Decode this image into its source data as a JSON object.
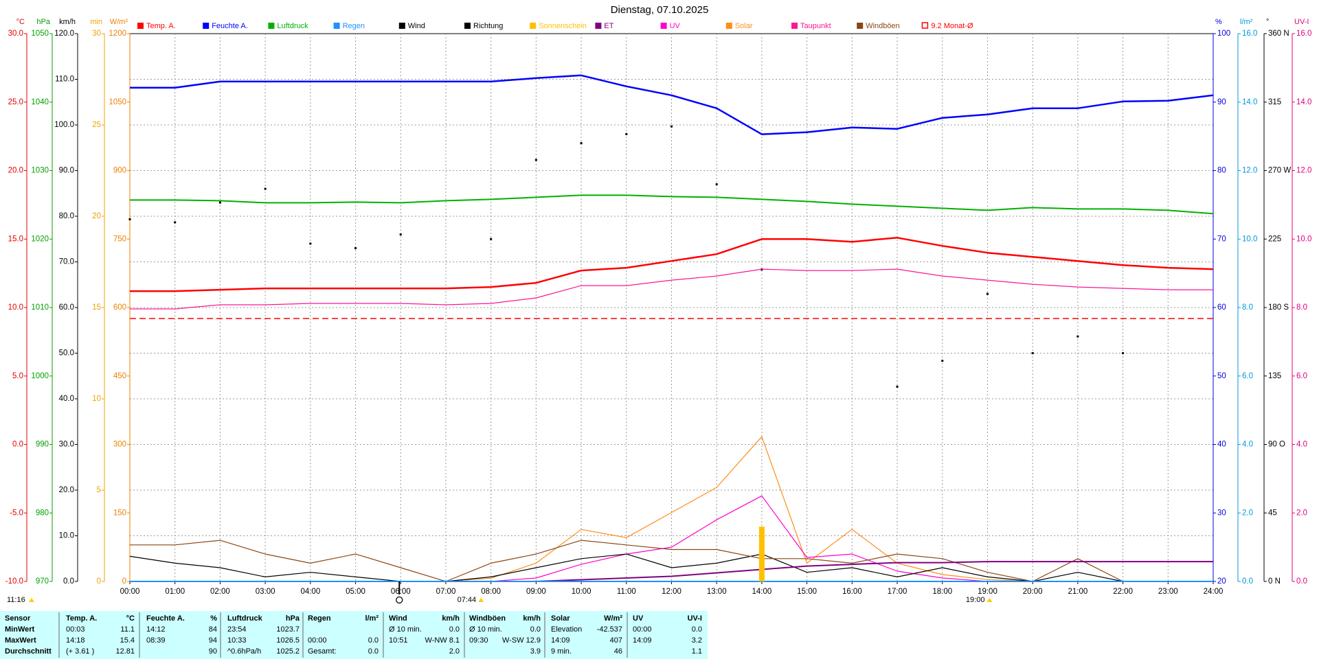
{
  "chart_data": {
    "type": "line",
    "title": "Dienstag, 07.10.2025",
    "x": [
      0,
      1,
      2,
      3,
      4,
      5,
      6,
      7,
      8,
      9,
      10,
      11,
      12,
      13,
      14,
      15,
      16,
      17,
      18,
      19,
      20,
      21,
      22,
      23,
      24
    ],
    "xlim": [
      0,
      24
    ],
    "xticks": [
      {
        "value": 0,
        "label": "00:00"
      },
      {
        "value": 1,
        "label": "01:00"
      },
      {
        "value": 2,
        "label": "02:00"
      },
      {
        "value": 3,
        "label": "03:00"
      },
      {
        "value": 4,
        "label": "04:00"
      },
      {
        "value": 5,
        "label": "05:00"
      },
      {
        "value": 6,
        "label": "06:00"
      },
      {
        "value": 7,
        "label": "07:00"
      },
      {
        "value": 8,
        "label": "08:00"
      },
      {
        "value": 9,
        "label": "09:00"
      },
      {
        "value": 10,
        "label": "10:00"
      },
      {
        "value": 11,
        "label": "11:00"
      },
      {
        "value": 12,
        "label": "12:00"
      },
      {
        "value": 13,
        "label": "13:00"
      },
      {
        "value": 14,
        "label": "14:00"
      },
      {
        "value": 15,
        "label": "15:00"
      },
      {
        "value": 16,
        "label": "16:00"
      },
      {
        "value": 17,
        "label": "17:00"
      },
      {
        "value": 18,
        "label": "18:00"
      },
      {
        "value": 19,
        "label": "19:00"
      },
      {
        "value": 20,
        "label": "20:00"
      },
      {
        "value": 21,
        "label": "21:00"
      },
      {
        "value": 22,
        "label": "22:00"
      },
      {
        "value": 23,
        "label": "23:00"
      },
      {
        "value": 24,
        "label": "24:00"
      }
    ],
    "xgrid": true,
    "axes": [
      {
        "unit": "°C",
        "side": "left",
        "color": "#e00000",
        "lim": [
          -10,
          30
        ],
        "ticks": [
          {
            "value": -10,
            "label": "-10.0"
          },
          {
            "value": -5,
            "label": "-5.0"
          },
          {
            "value": 0,
            "label": "0.0"
          },
          {
            "value": 5,
            "label": "5.0"
          },
          {
            "value": 10,
            "label": "10.0"
          },
          {
            "value": 15,
            "label": "15.0"
          },
          {
            "value": 20,
            "label": "20.0"
          },
          {
            "value": 25,
            "label": "25.0"
          },
          {
            "value": 30,
            "label": "30.0"
          }
        ]
      },
      {
        "unit": "hPa",
        "side": "left",
        "color": "#00a000",
        "lim": [
          970,
          1050
        ],
        "ticks": [
          970,
          980,
          990,
          1000,
          1010,
          1020,
          1030,
          1040,
          1050
        ]
      },
      {
        "unit": "km/h",
        "side": "left",
        "color": "#000000",
        "grid": true,
        "lim": [
          0,
          120
        ],
        "ticks": [
          {
            "value": 0,
            "label": "0.0"
          },
          {
            "value": 10,
            "label": "10.0"
          },
          {
            "value": 20,
            "label": "20.0"
          },
          {
            "value": 30,
            "label": "30.0"
          },
          {
            "value": 40,
            "label": "40.0"
          },
          {
            "value": 50,
            "label": "50.0"
          },
          {
            "value": 60,
            "label": "60.0"
          },
          {
            "value": 70,
            "label": "70.0"
          },
          {
            "value": 80,
            "label": "80.0"
          },
          {
            "value": 90,
            "label": "90.0"
          },
          {
            "value": 100,
            "label": "100.0"
          },
          {
            "value": 110,
            "label": "110.0"
          },
          {
            "value": 120,
            "label": "120.0"
          }
        ]
      },
      {
        "unit": "min",
        "side": "left",
        "color": "#f0a000",
        "lim": [
          0,
          30
        ],
        "ticks": [
          0,
          5,
          10,
          15,
          20,
          25,
          30
        ]
      },
      {
        "unit": "W/m²",
        "side": "left",
        "color": "#f08000",
        "lim": [
          0,
          1200
        ],
        "ticks": [
          0,
          150,
          300,
          450,
          600,
          750,
          900,
          1050,
          1200
        ]
      },
      {
        "unit": "%",
        "side": "right",
        "color": "#0000e0",
        "lim": [
          20,
          100
        ],
        "ticks": [
          20,
          30,
          40,
          50,
          60,
          70,
          80,
          90,
          100
        ]
      },
      {
        "unit": "l/m²",
        "side": "right",
        "color": "#0099dd",
        "lim": [
          0,
          16
        ],
        "ticks": [
          {
            "value": 0,
            "label": "0.0"
          },
          {
            "value": 2,
            "label": "2.0"
          },
          {
            "value": 4,
            "label": "4.0"
          },
          {
            "value": 6,
            "label": "6.0"
          },
          {
            "value": 8,
            "label": "8.0"
          },
          {
            "value": 10,
            "label": "10.0"
          },
          {
            "value": 12,
            "label": "12.0"
          },
          {
            "value": 14,
            "label": "14.0"
          },
          {
            "value": 16,
            "label": "16.0"
          }
        ]
      },
      {
        "unit": "°",
        "side": "right",
        "color": "#000000",
        "lim": [
          0,
          360
        ],
        "ticks": [
          {
            "value": 0,
            "label": "0 N"
          },
          45,
          {
            "value": 90,
            "label": "90 O"
          },
          135,
          {
            "value": 180,
            "label": "180 S"
          },
          225,
          {
            "value": 270,
            "label": "270 W"
          },
          315,
          {
            "value": 360,
            "label": "360 N"
          }
        ]
      },
      {
        "unit": "UV-I",
        "side": "right",
        "color": "#e0007f",
        "lim": [
          0,
          16
        ],
        "ticks": [
          {
            "value": 0,
            "label": "0.0"
          },
          {
            "value": 2,
            "label": "2.0"
          },
          {
            "value": 4,
            "label": "4.0"
          },
          {
            "value": 6,
            "label": "6.0"
          },
          {
            "value": 8,
            "label": "8.0"
          },
          {
            "value": 10,
            "label": "10.0"
          },
          {
            "value": 12,
            "label": "12.0"
          },
          {
            "value": 14,
            "label": "14.0"
          },
          {
            "value": 16,
            "label": "16.0"
          }
        ]
      }
    ],
    "series": [
      {
        "name": "Temp. A.",
        "color": "#ff0000",
        "type": "line",
        "axis": "°C",
        "width": 2.5,
        "values": [
          11.2,
          11.2,
          11.3,
          11.4,
          11.4,
          11.4,
          11.4,
          11.4,
          11.5,
          11.8,
          12.7,
          12.9,
          13.4,
          13.9,
          15.0,
          15.0,
          14.8,
          15.1,
          14.5,
          14.0,
          13.7,
          13.4,
          13.1,
          12.9,
          12.8
        ]
      },
      {
        "name": "Feuchte A.",
        "color": "#0000ff",
        "type": "line",
        "axis": "%",
        "width": 2.5,
        "values": [
          92.1,
          92.1,
          93.0,
          93.0,
          93.0,
          93.0,
          93.0,
          93.0,
          93.0,
          93.5,
          93.9,
          92.3,
          91.0,
          89.1,
          85.3,
          85.6,
          86.3,
          86.1,
          87.7,
          88.2,
          89.1,
          89.1,
          90.1,
          90.2,
          91.0
        ]
      },
      {
        "name": "Luftdruck",
        "color": "#00b000",
        "type": "line",
        "axis": "hPa",
        "width": 2,
        "values": [
          1025.7,
          1025.7,
          1025.6,
          1025.3,
          1025.3,
          1025.4,
          1025.3,
          1025.6,
          1025.8,
          1026.1,
          1026.4,
          1026.4,
          1026.2,
          1026.1,
          1025.8,
          1025.5,
          1025.1,
          1024.8,
          1024.5,
          1024.2,
          1024.6,
          1024.4,
          1024.4,
          1024.2,
          1023.7
        ]
      },
      {
        "name": "Regen",
        "color": "#1e90ff",
        "type": "line",
        "axis": "l/m²",
        "width": 2,
        "values": [
          0,
          0,
          0,
          0,
          0,
          0,
          0,
          0,
          0,
          0,
          0,
          0,
          0,
          0,
          0,
          0,
          0,
          0,
          0,
          0,
          0,
          0,
          0,
          0,
          0
        ]
      },
      {
        "name": "Wind",
        "color": "#000000",
        "type": "line",
        "axis": "km/h",
        "width": 1.2,
        "values": [
          5.5,
          4,
          3,
          1,
          2,
          1,
          0,
          0,
          1,
          3,
          5,
          6,
          3,
          4,
          6,
          2,
          3,
          1,
          3,
          1,
          0,
          2,
          0,
          0,
          0
        ]
      },
      {
        "name": "Richtung",
        "color": "#000000",
        "type": "scatter",
        "axis": "°",
        "values": [
          238,
          236,
          249,
          258,
          222,
          219,
          228,
          null,
          225,
          277,
          288,
          294,
          299,
          261,
          205,
          null,
          null,
          128,
          145,
          189,
          150,
          161,
          150,
          null,
          null
        ]
      },
      {
        "name": "Sonnenschein",
        "color": "#ffc000",
        "type": "bar",
        "axis": "min",
        "values": [
          null,
          null,
          null,
          null,
          null,
          null,
          null,
          null,
          null,
          null,
          null,
          null,
          null,
          null,
          3,
          null,
          null,
          null,
          null,
          null,
          null,
          null,
          null,
          null,
          null
        ]
      },
      {
        "name": "ET",
        "color": "#800080",
        "type": "line",
        "axis": "l/m²",
        "width": 2,
        "values": [
          0,
          0,
          0,
          0,
          0,
          0,
          0,
          0,
          0,
          0,
          0.05,
          0.1,
          0.15,
          0.25,
          0.35,
          0.45,
          0.5,
          0.55,
          0.55,
          0.58,
          0.58,
          0.58,
          0.58,
          0.58,
          0.58
        ]
      },
      {
        "name": "UV",
        "color": "#ff00cc",
        "type": "line",
        "axis": "UV-I",
        "width": 1.2,
        "values": [
          0,
          0,
          0,
          0,
          0,
          0,
          0,
          0,
          0,
          0.1,
          0.5,
          0.8,
          1.0,
          1.8,
          2.5,
          0.7,
          0.8,
          0.3,
          0.1,
          0,
          0,
          0,
          0,
          0,
          0
        ]
      },
      {
        "name": "Solar",
        "color": "#ff8c1a",
        "type": "line",
        "axis": "W/m²",
        "width": 1.2,
        "values": [
          0,
          0,
          0,
          0,
          0,
          0,
          0,
          0,
          7,
          40,
          114,
          96,
          151,
          206,
          317,
          40,
          114,
          40,
          15,
          4,
          0,
          0,
          0,
          0,
          0
        ]
      },
      {
        "name": "Taupunkt",
        "color": "#ff1493",
        "type": "line",
        "axis": "°C",
        "width": 1.2,
        "values": [
          9.9,
          9.9,
          10.2,
          10.2,
          10.3,
          10.3,
          10.3,
          10.2,
          10.3,
          10.7,
          11.6,
          11.6,
          12.0,
          12.3,
          12.8,
          12.7,
          12.7,
          12.8,
          12.3,
          12.0,
          11.7,
          11.5,
          11.4,
          11.3,
          11.3
        ]
      },
      {
        "name": "Windböen",
        "color": "#8b4513",
        "type": "line",
        "axis": "km/h",
        "width": 1.2,
        "values": [
          8,
          8,
          9,
          6,
          4,
          6,
          3,
          0,
          4,
          6,
          9,
          8,
          7,
          7,
          5,
          5,
          4,
          6,
          5,
          2,
          0,
          5,
          0,
          0,
          0
        ]
      }
    ],
    "reference": {
      "name": "9.2 Monat-Ø",
      "value": 9.2,
      "color": "#ff0000",
      "axis": "°C"
    },
    "sunshine_total": "11:16",
    "sunrise": "07:44",
    "sunset": "19:00"
  },
  "stats_table": {
    "header": [
      "Sensor",
      "Temp. A.",
      "°C",
      "Feuchte A.",
      "%",
      "Luftdruck",
      "hPa",
      "Regen",
      "l/m²",
      "Wind",
      "km/h",
      "Windböen",
      "km/h",
      "Solar",
      "W/m²",
      "UV",
      "UV-I"
    ],
    "rows": [
      [
        "MinWert",
        "00:03",
        "11.1",
        "14:12",
        "84",
        "23:54",
        "1023.7",
        null,
        null,
        "Ø 10 min.",
        "0.0",
        "Ø 10 min.",
        "0.0",
        "Elevation",
        "-42.537",
        "00:00",
        "0.0"
      ],
      [
        "MaxWert",
        "14:18",
        "15.4",
        "08:39",
        "94",
        "10:33",
        "1026.5",
        "00:00",
        "0.0",
        "10:51",
        "W-NW 8.1",
        "09:30",
        "W-SW 12.9",
        "14:09",
        "407",
        "14:09",
        "3.2"
      ],
      [
        "Durchschnitt",
        "(+ 3.61 )",
        "12.81",
        null,
        "90",
        "^0.6hPa/h",
        "1025.2",
        "Gesamt:",
        "0.0",
        null,
        "2.0",
        null,
        "3.9",
        "9 min.",
        "46",
        null,
        "1.1"
      ]
    ]
  }
}
